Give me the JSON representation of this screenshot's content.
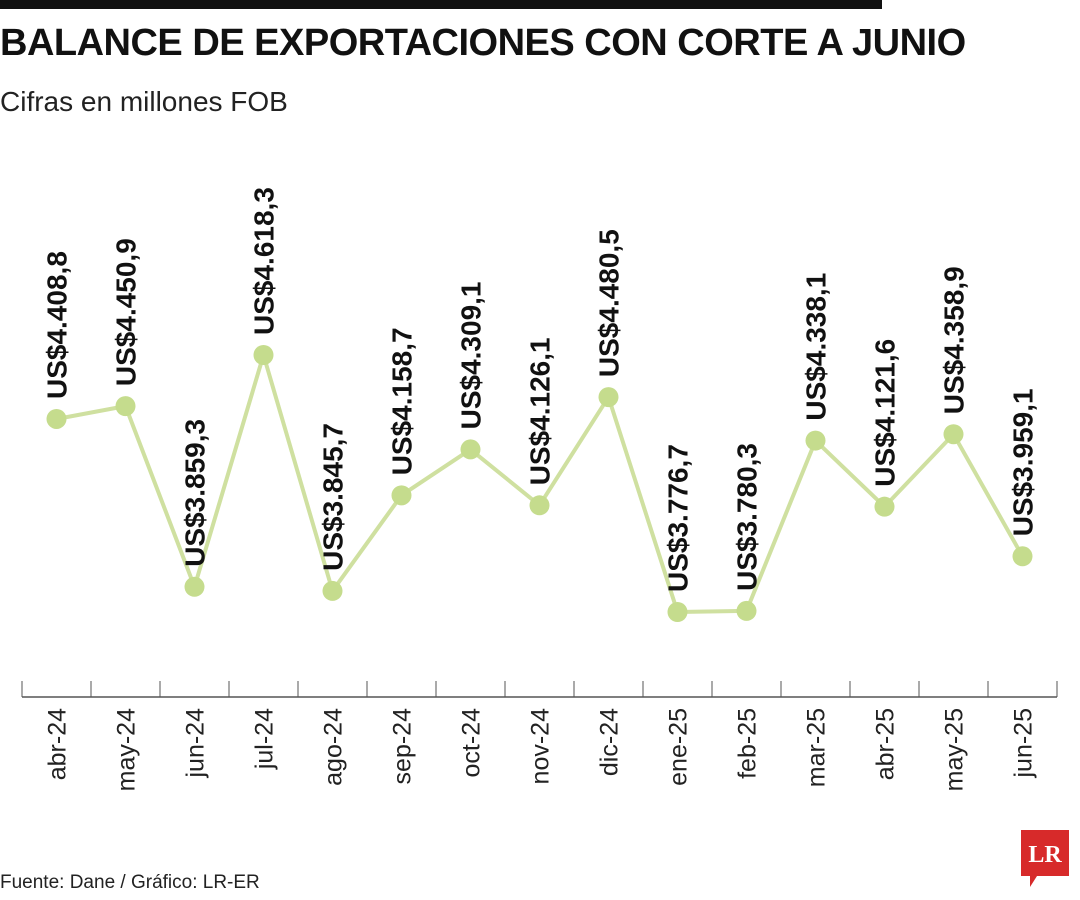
{
  "header": {
    "title": "BALANCE DE EXPORTACIONES CON CORTE A JUNIO",
    "subtitle": "Cifras en millones FOB"
  },
  "footer": {
    "source": "Fuente: Dane / Gráfico: LR-ER",
    "logo_text": "LR"
  },
  "colors": {
    "line": "#cfe0a0",
    "marker": "#c5dc8d",
    "axis": "#555555",
    "logo": "#d72a2a"
  },
  "chart_data": {
    "type": "line",
    "title": "BALANCE DE EXPORTACIONES CON CORTE A JUNIO",
    "subtitle": "Cifras en millones FOB",
    "unit_prefix": "US$",
    "categories": [
      "abr-24",
      "may-24",
      "jun-24",
      "jul-24",
      "ago-24",
      "sep-24",
      "oct-24",
      "nov-24",
      "dic-24",
      "ene-25",
      "feb-25",
      "mar-25",
      "abr-25",
      "may-25",
      "jun-25"
    ],
    "values": [
      4408.8,
      4450.9,
      3859.3,
      4618.3,
      3845.7,
      4158.7,
      4309.1,
      4126.1,
      4480.5,
      3776.7,
      3780.3,
      4338.1,
      4121.6,
      4358.9,
      3959.1
    ],
    "labels": [
      "US$4.408,8",
      "US$4.450,9",
      "US$3.859,3",
      "US$4.618,3",
      "US$3.845,7",
      "US$4.158,7",
      "US$4.309,1",
      "US$4.126,1",
      "US$4.480,5",
      "US$3.776,7",
      "US$3.780,3",
      "US$4.338,1",
      "US$4.121,6",
      "US$4.358,9",
      "US$3.959,1"
    ],
    "ylim": [
      3500,
      4900
    ],
    "grid": false,
    "legend": "none"
  }
}
